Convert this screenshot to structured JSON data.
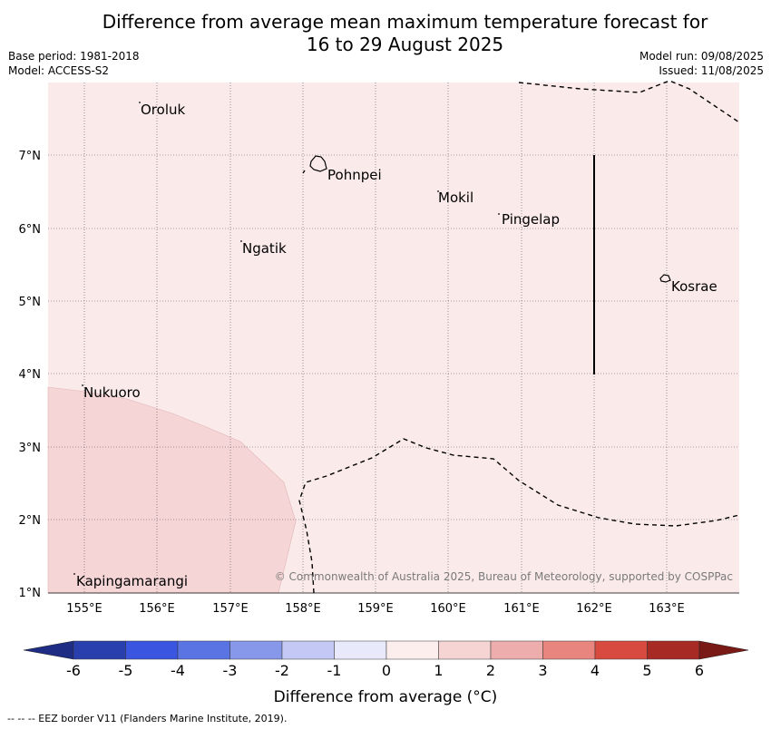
{
  "title_line1": "Difference from average mean maximum temperature forecast for",
  "title_line2": "16 to 29 August 2025",
  "base_period": "Base period: 1981-2018",
  "model": "Model: ACCESS-S2",
  "model_run": "Model run: 09/08/2025",
  "issued": "Issued: 11/08/2025",
  "lat_labels": [
    "7°N",
    "6°N",
    "5°N",
    "4°N",
    "3°N",
    "2°N",
    "1°N"
  ],
  "lon_labels": [
    "155°E",
    "156°E",
    "157°E",
    "158°E",
    "159°E",
    "160°E",
    "161°E",
    "162°E",
    "163°E"
  ],
  "places": [
    "Oroluk",
    "Pohnpei",
    "Mokil",
    "Pingelap",
    "Ngatik",
    "Kosrae",
    "Nukuoro",
    "Kapingamarangi"
  ],
  "copyright": "© Commonwealth of Australia 2025, Bureau of Meteorology, supported by COSPPac",
  "colorbar": {
    "ticks": [
      "-6",
      "-5",
      "-4",
      "-3",
      "-2",
      "-1",
      "0",
      "1",
      "2",
      "3",
      "4",
      "5",
      "6"
    ],
    "colors": [
      "#2a3fae",
      "#3a55e0",
      "#5a74e4",
      "#8798ea",
      "#c3c9f4",
      "#e8eafb",
      "#fdeeee",
      "#f6d4d4",
      "#eeadad",
      "#e8857e",
      "#d84a40",
      "#a82a24"
    ],
    "low_color": "#1e2d83",
    "high_color": "#7a1a16",
    "label": "Difference from average (°C)"
  },
  "map_colors": {
    "background": "#fbeaea",
    "anomaly_1_2": "#f5d5d5"
  },
  "footnote": "--  --  -- EEZ border V11 (Flanders Marine Institute, 2019)."
}
